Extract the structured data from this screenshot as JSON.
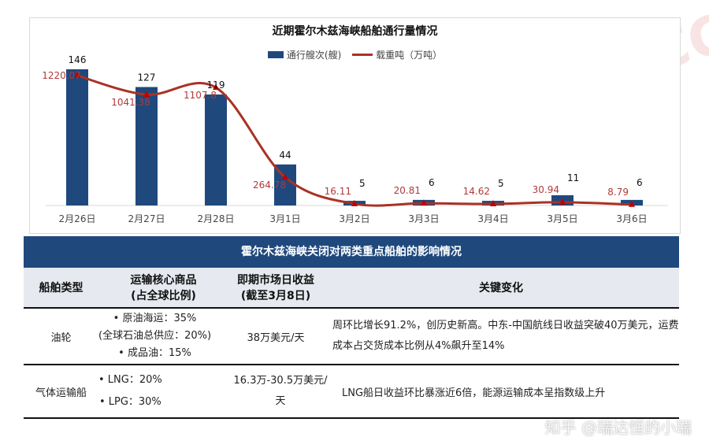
{
  "chart_data": {
    "type": "bar+line",
    "title": "近期霍尔木兹海峡船舶通行量情况",
    "categories": [
      "2月26日",
      "2月27日",
      "2月28日",
      "3月1日",
      "3月2日",
      "3月3日",
      "3月4日",
      "3月5日",
      "3月6日"
    ],
    "series": [
      {
        "name": "通行艘次(艘)",
        "type": "bar",
        "color": "#1f497d",
        "values": [
          146,
          127,
          119,
          44,
          5,
          6,
          5,
          11,
          6
        ],
        "labels": [
          "146",
          "127",
          "119",
          "44",
          "5",
          "6",
          "5",
          "11",
          "6"
        ]
      },
      {
        "name": "载重吨（万吨）",
        "type": "line",
        "color": "#a93226",
        "values": [
          1220.07,
          1041.38,
          1107.8,
          264.78,
          16.11,
          20.81,
          14.62,
          30.94,
          8.79
        ],
        "labels": [
          "1220.07",
          "1041.38",
          "1107.8",
          "264.78",
          "16.11",
          "20.81",
          "14.62",
          "30.94",
          "8.79"
        ]
      }
    ],
    "legend": "top",
    "grid": false
  },
  "watermark": {
    "logo": "RCC 瑞达恒",
    "credit": "知乎 @瑞达恒的小瑞"
  },
  "table": {
    "title": "霍尔木兹海峡关闭对两类重点船舶的影响情况",
    "headers": [
      "船舶类型",
      "运输核心商品\n(占全球比例)",
      "即期市场日收益\n(截至3月8日)",
      "关键变化"
    ],
    "rows": [
      {
        "type": "油轮",
        "goods": [
          "• 原油海运：35%",
          "(全球石油总供应：20%)",
          "• 成品油：15%"
        ],
        "earnings": "38万美元/天",
        "change": "周环比增长91.2%，创历史新高。中东-中国航线日收益突破40万美元，运费成本占交货成本比例从4%飙升至14%"
      },
      {
        "type": "气体运输船",
        "goods": [
          "• LNG：20%",
          "• LPG：30%"
        ],
        "earnings": "16.3万-30.5万美元/天",
        "change": "LNG船日收益环比暴涨近6倍，能源运输成本呈指数级上升"
      }
    ]
  }
}
